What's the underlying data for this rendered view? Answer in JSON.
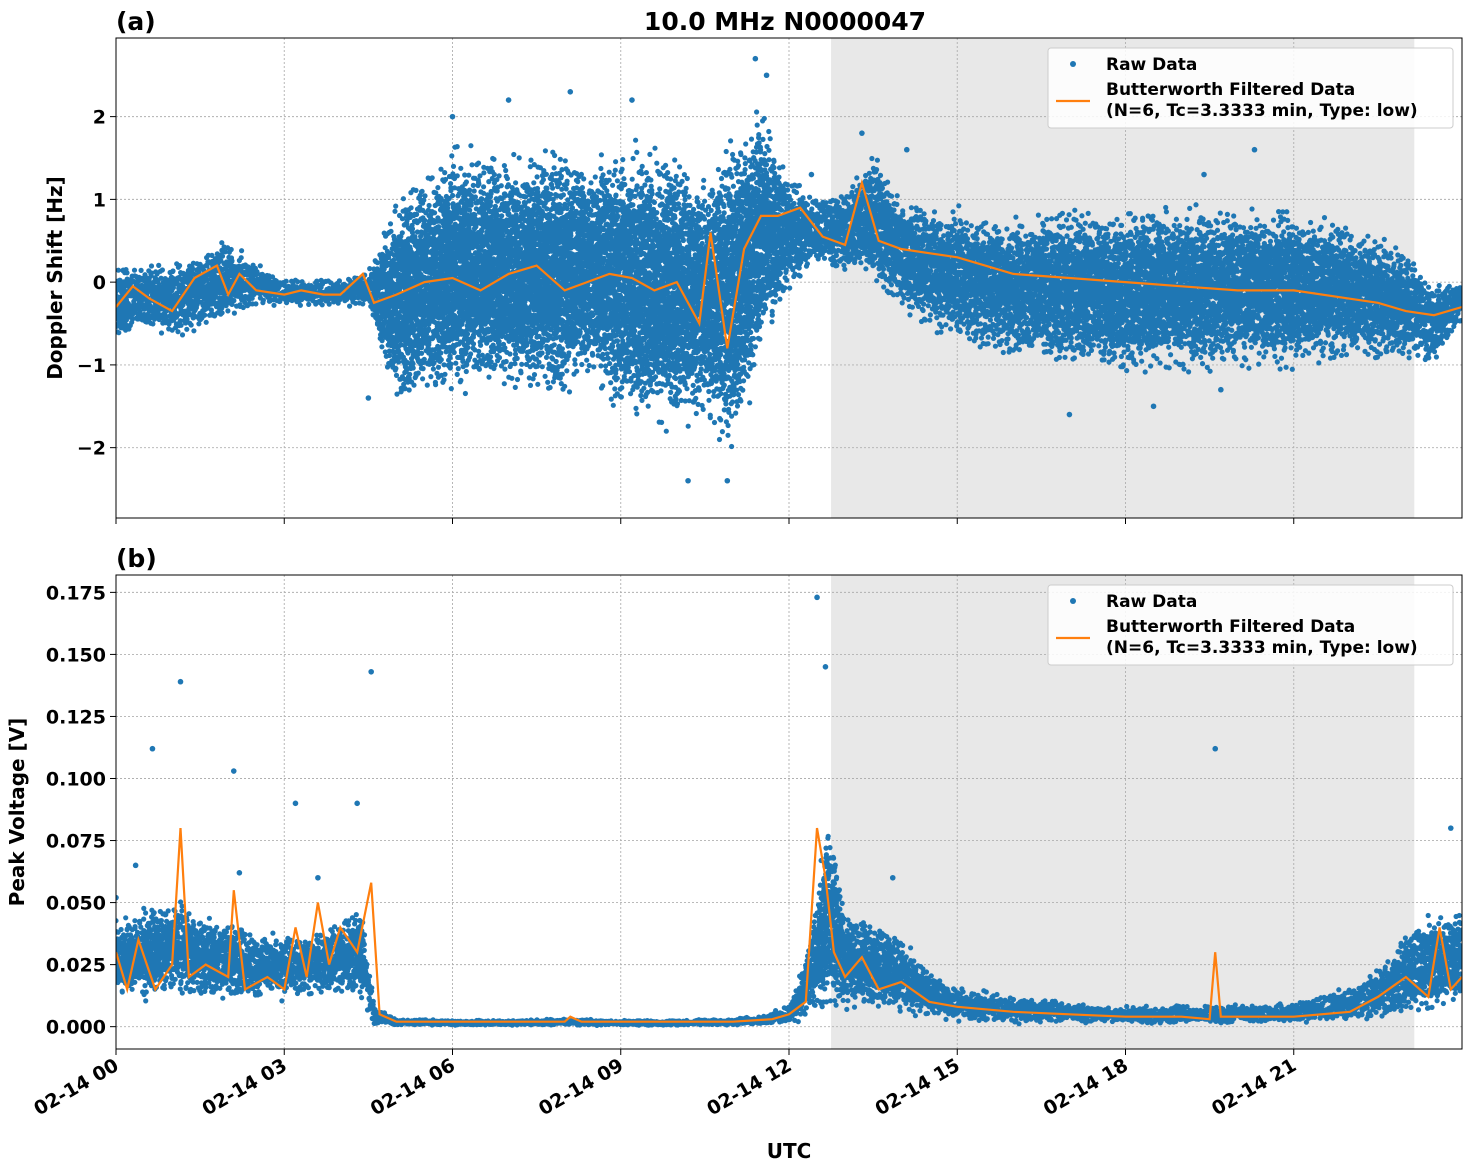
{
  "figure_title": "10.0 MHz N0000047",
  "xlabel": "UTC",
  "legend": {
    "raw": "Raw Data",
    "filtered_line1": "Butterworth Filtered Data",
    "filtered_line2": "(N=6, Tc=3.3333 min, Type: low)"
  },
  "colors": {
    "raw": "#1f77b4",
    "filtered": "#ff7f0e",
    "shade": "#e8e8e8",
    "grid": "#b0b0b0"
  },
  "x_ticks": [
    "02-14 00",
    "02-14 03",
    "02-14 06",
    "02-14 09",
    "02-14 12",
    "02-14 15",
    "02-14 18",
    "02-14 21"
  ],
  "chart_data": [
    {
      "type": "scatter",
      "panel_label": "(a)",
      "ylabel": "Doppler Shift [Hz]",
      "xlim_hours": [
        0,
        24
      ],
      "ylim": [
        -2.85,
        2.95
      ],
      "yticks": [
        -2,
        -1,
        0,
        1,
        2
      ],
      "ytick_labels": [
        "−2",
        "−1",
        "0",
        "1",
        "2"
      ],
      "grid": true,
      "legend_position": "top-right",
      "shaded_span_hours": [
        12.75,
        23.15
      ],
      "series": [
        {
          "name": "Raw Data",
          "style": "points",
          "envelope_hours": [
            0,
            0.5,
            1,
            1.5,
            2,
            2.5,
            3,
            3.5,
            4,
            4.5,
            5,
            6,
            7,
            8,
            8.5,
            9,
            10,
            10.5,
            11,
            11.5,
            12,
            12.5,
            13,
            13.5,
            14,
            15,
            16,
            17,
            18,
            19,
            20,
            21,
            22,
            23,
            23.5,
            24
          ],
          "upper": [
            0.3,
            0.3,
            0.3,
            0.4,
            0.6,
            0.3,
            0.1,
            0.1,
            0.1,
            0.2,
            1.2,
            1.8,
            1.7,
            1.8,
            1.6,
            1.8,
            1.7,
            1.4,
            1.9,
            2.3,
            1.4,
            1.1,
            1.2,
            1.7,
            1.1,
            1.0,
            0.9,
            1.0,
            1.0,
            1.1,
            1.0,
            1.0,
            0.8,
            0.5,
            0.1,
            0.1
          ],
          "lower": [
            -0.8,
            -0.6,
            -0.7,
            -0.6,
            -0.5,
            -0.3,
            -0.3,
            -0.3,
            -0.3,
            -0.3,
            -1.6,
            -1.5,
            -1.4,
            -1.6,
            -1.2,
            -1.7,
            -1.9,
            -1.7,
            -2.2,
            -1.0,
            -0.2,
            0.2,
            0.1,
            -0.1,
            -0.4,
            -0.8,
            -1.0,
            -1.1,
            -1.2,
            -1.2,
            -1.1,
            -1.1,
            -1.0,
            -1.0,
            -1.0,
            -0.5
          ],
          "outliers": [
            [
              4.5,
              -1.4
            ],
            [
              6.0,
              2.0
            ],
            [
              7.0,
              2.2
            ],
            [
              8.1,
              2.3
            ],
            [
              9.2,
              2.2
            ],
            [
              10.2,
              -2.4
            ],
            [
              10.9,
              -2.4
            ],
            [
              11.4,
              2.7
            ],
            [
              11.6,
              2.5
            ],
            [
              12.4,
              1.3
            ],
            [
              13.3,
              1.8
            ],
            [
              14.1,
              1.6
            ],
            [
              17.0,
              -1.6
            ],
            [
              18.5,
              -1.5
            ],
            [
              19.4,
              1.3
            ],
            [
              20.3,
              1.6
            ],
            [
              19.7,
              -1.3
            ]
          ]
        },
        {
          "name": "Butterworth Filtered Data",
          "style": "line",
          "x_hours": [
            0,
            0.3,
            0.6,
            1.0,
            1.4,
            1.8,
            2.0,
            2.2,
            2.5,
            3.0,
            3.3,
            3.7,
            4.0,
            4.4,
            4.6,
            5.0,
            5.5,
            6.0,
            6.5,
            7.0,
            7.5,
            8.0,
            8.4,
            8.8,
            9.2,
            9.6,
            10.0,
            10.4,
            10.6,
            10.9,
            11.2,
            11.5,
            11.8,
            12.2,
            12.6,
            13.0,
            13.3,
            13.6,
            14.0,
            14.5,
            15.0,
            16.0,
            17.0,
            18.0,
            19.0,
            20.0,
            21.0,
            22.0,
            22.5,
            23.0,
            23.5,
            24.0
          ],
          "values": [
            -0.3,
            -0.05,
            -0.2,
            -0.35,
            0.05,
            0.2,
            -0.15,
            0.1,
            -0.1,
            -0.15,
            -0.1,
            -0.15,
            -0.15,
            0.1,
            -0.25,
            -0.15,
            0.0,
            0.05,
            -0.1,
            0.1,
            0.2,
            -0.1,
            0.0,
            0.1,
            0.05,
            -0.1,
            0.0,
            -0.5,
            0.6,
            -0.8,
            0.4,
            0.8,
            0.8,
            0.9,
            0.55,
            0.45,
            1.2,
            0.5,
            0.4,
            0.35,
            0.3,
            0.1,
            0.05,
            0.0,
            -0.05,
            -0.1,
            -0.1,
            -0.2,
            -0.25,
            -0.35,
            -0.4,
            -0.3
          ]
        }
      ]
    },
    {
      "type": "scatter",
      "panel_label": "(b)",
      "ylabel": "Peak Voltage [V]",
      "xlim_hours": [
        0,
        24
      ],
      "ylim": [
        -0.009,
        0.182
      ],
      "yticks": [
        0.0,
        0.025,
        0.05,
        0.075,
        0.1,
        0.125,
        0.15,
        0.175
      ],
      "ytick_labels": [
        "0.000",
        "0.025",
        "0.050",
        "0.075",
        "0.100",
        "0.125",
        "0.150",
        "0.175"
      ],
      "grid": true,
      "legend_position": "top-right",
      "shaded_span_hours": [
        12.75,
        23.15
      ],
      "series": [
        {
          "name": "Raw Data",
          "style": "points",
          "envelope_hours": [
            0,
            0.5,
            1,
            1.5,
            2,
            2.5,
            3,
            3.5,
            4,
            4.4,
            4.6,
            5,
            6,
            7,
            8,
            9,
            10,
            11,
            11.5,
            12,
            12.4,
            12.7,
            13,
            13.5,
            14,
            14.5,
            15,
            16,
            17,
            18,
            19,
            20,
            21,
            22,
            22.5,
            23,
            23.5,
            24
          ],
          "upper": [
            0.045,
            0.05,
            0.055,
            0.05,
            0.045,
            0.04,
            0.04,
            0.04,
            0.045,
            0.05,
            0.01,
            0.004,
            0.003,
            0.003,
            0.004,
            0.003,
            0.003,
            0.004,
            0.005,
            0.01,
            0.04,
            0.09,
            0.05,
            0.045,
            0.04,
            0.025,
            0.018,
            0.014,
            0.012,
            0.01,
            0.01,
            0.011,
            0.012,
            0.018,
            0.025,
            0.04,
            0.05,
            0.05
          ],
          "lower": [
            0.01,
            0.01,
            0.012,
            0.01,
            0.01,
            0.01,
            0.01,
            0.012,
            0.012,
            0.01,
            0.001,
            0.0005,
            0.0005,
            0.0005,
            0.0005,
            0.0005,
            0.0005,
            0.0005,
            0.0008,
            0.001,
            0.003,
            0.005,
            0.005,
            0.005,
            0.004,
            0.003,
            0.002,
            0.001,
            0.001,
            0.001,
            0.001,
            0.001,
            0.001,
            0.002,
            0.003,
            0.004,
            0.005,
            0.006
          ],
          "outliers": [
            [
              0.0,
              0.052
            ],
            [
              0.35,
              0.065
            ],
            [
              0.65,
              0.112
            ],
            [
              1.15,
              0.139
            ],
            [
              2.1,
              0.103
            ],
            [
              2.2,
              0.062
            ],
            [
              3.2,
              0.09
            ],
            [
              3.6,
              0.06
            ],
            [
              4.3,
              0.09
            ],
            [
              4.55,
              0.143
            ],
            [
              12.5,
              0.173
            ],
            [
              12.65,
              0.145
            ],
            [
              13.85,
              0.06
            ],
            [
              19.6,
              0.112
            ],
            [
              23.8,
              0.08
            ]
          ]
        },
        {
          "name": "Butterworth Filtered Data",
          "style": "line",
          "x_hours": [
            0,
            0.2,
            0.4,
            0.7,
            1.0,
            1.15,
            1.3,
            1.6,
            2.0,
            2.1,
            2.3,
            2.7,
            3.0,
            3.2,
            3.4,
            3.6,
            3.8,
            4.0,
            4.3,
            4.55,
            4.7,
            5.0,
            6.0,
            7.0,
            8.0,
            8.1,
            8.3,
            9.0,
            10.0,
            11.0,
            11.7,
            12.0,
            12.3,
            12.5,
            12.65,
            12.8,
            13.0,
            13.3,
            13.6,
            14.0,
            14.5,
            15.0,
            16.0,
            17.0,
            18.0,
            19.0,
            19.5,
            19.6,
            19.7,
            20.0,
            21.0,
            22.0,
            22.5,
            23.0,
            23.4,
            23.6,
            23.8,
            24.0
          ],
          "values": [
            0.03,
            0.015,
            0.035,
            0.015,
            0.025,
            0.08,
            0.02,
            0.025,
            0.02,
            0.055,
            0.015,
            0.02,
            0.015,
            0.04,
            0.02,
            0.05,
            0.025,
            0.04,
            0.03,
            0.058,
            0.005,
            0.002,
            0.002,
            0.002,
            0.002,
            0.004,
            0.002,
            0.002,
            0.002,
            0.002,
            0.003,
            0.005,
            0.01,
            0.08,
            0.06,
            0.03,
            0.02,
            0.028,
            0.015,
            0.018,
            0.01,
            0.008,
            0.006,
            0.005,
            0.004,
            0.004,
            0.003,
            0.03,
            0.004,
            0.004,
            0.004,
            0.006,
            0.012,
            0.02,
            0.012,
            0.04,
            0.015,
            0.02
          ]
        }
      ]
    }
  ]
}
